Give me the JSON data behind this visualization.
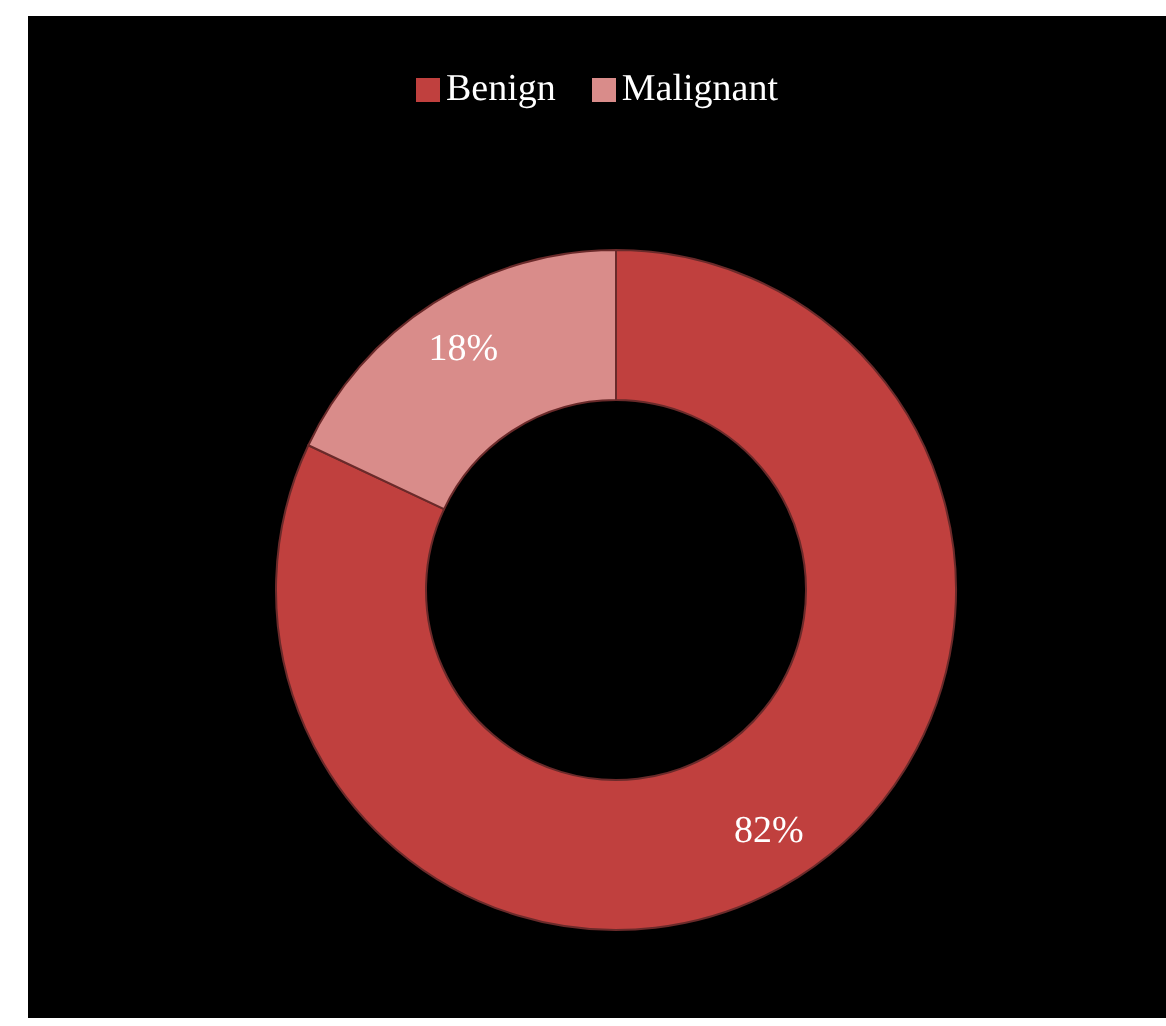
{
  "chart_data": {
    "type": "donut",
    "categories": [
      "Benign",
      "Malignant"
    ],
    "values": [
      82,
      18
    ],
    "colors": [
      "#c0403e",
      "#d98c8a"
    ],
    "value_labels": [
      "82%",
      "18%"
    ],
    "legend": "top"
  }
}
